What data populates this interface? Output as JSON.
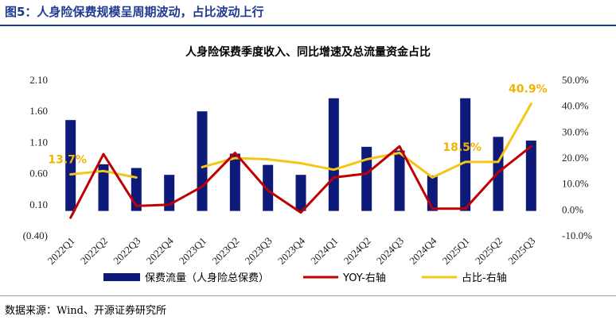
{
  "figure_title": "图5：人身险保费规模呈周期波动，占比波动上行",
  "source_note": "数据来源：Wind、开源证券研究所",
  "colors": {
    "bar": "#0e1a7a",
    "yoy": "#c00000",
    "share": "#f5c518",
    "title": "#1f3a93",
    "annotation": "#f0b400"
  },
  "chart_data": {
    "type": "bar",
    "title": "人身险保费季度收入、同比增速及总流量资金占比",
    "categories": [
      "2022Q1",
      "2022Q2",
      "2022Q3",
      "2022Q4",
      "2023Q1",
      "2023Q2",
      "2023Q3",
      "2023Q4",
      "2024Q1",
      "2024Q2",
      "2024Q3",
      "2024Q4",
      "2025Q1",
      "2025Q2",
      "2025Q3"
    ],
    "series": [
      {
        "name": "保费流量（人身险总保费）",
        "type": "bar",
        "axis": "left",
        "values": [
          1.46,
          0.75,
          0.69,
          0.58,
          1.6,
          0.92,
          0.74,
          0.58,
          1.81,
          1.03,
          0.97,
          0.57,
          1.81,
          1.19,
          1.13
        ]
      },
      {
        "name": "YOY-右轴",
        "type": "line",
        "axis": "right",
        "values": [
          -3.0,
          21.5,
          1.5,
          2.0,
          9.0,
          22.0,
          7.5,
          -1.0,
          12.5,
          14.0,
          24.5,
          0.5,
          0.5,
          14.5,
          24.5
        ]
      },
      {
        "name": "占比-右轴",
        "type": "line",
        "axis": "right",
        "values": [
          13.7,
          15.0,
          12.5,
          null,
          16.5,
          20.0,
          19.5,
          18.0,
          15.5,
          19.5,
          22.0,
          12.5,
          18.5,
          18.5,
          40.9
        ]
      }
    ],
    "y_left": {
      "ylim": [
        -0.4,
        2.1
      ],
      "ticks": [
        "(0.40)",
        "0.10",
        "0.60",
        "1.10",
        "1.60",
        "2.10"
      ]
    },
    "y_right": {
      "ylim": [
        -10,
        50
      ],
      "ticks": [
        "-10.0%",
        "0.0%",
        "10.0%",
        "20.0%",
        "30.0%",
        "40.0%",
        "50.0%"
      ]
    },
    "annotations": [
      "13.7%",
      "18.5%",
      "40.9%"
    ],
    "legend_position": "bottom",
    "grid": false
  }
}
